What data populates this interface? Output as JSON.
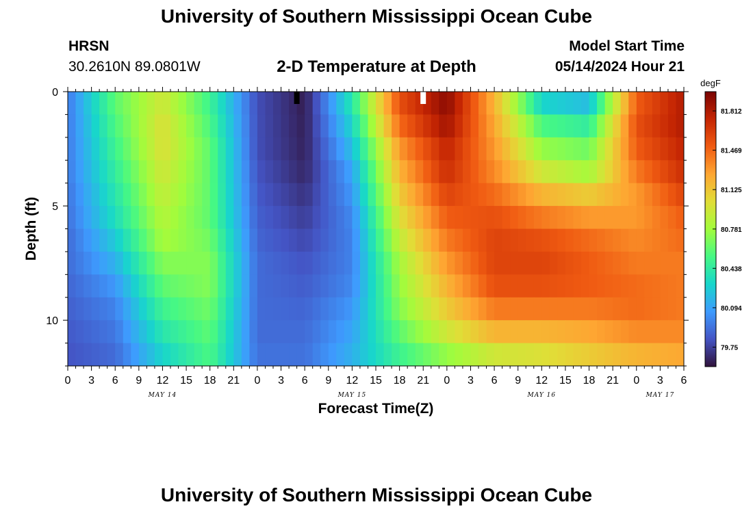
{
  "header": {
    "title": "University of Southern Mississippi Ocean Cube",
    "station": "HRSN",
    "coords": "30.2610N  89.0801W",
    "subtitle": "2-D Temperature at Depth",
    "start_label": "Model Start Time",
    "start_value": "05/14/2024 Hour 21"
  },
  "footer": {
    "title": "University of Southern Mississippi Ocean Cube"
  },
  "chart_data": {
    "type": "heatmap",
    "title": "2-D Temperature at Depth",
    "xlabel": "Forecast Time(Z)",
    "ylabel": "Depth (ft)",
    "x_unit": "hours since 05/14/2024 00Z",
    "xlim": [
      0,
      78
    ],
    "ylim": [
      0,
      12
    ],
    "y_inverted": true,
    "x_ticks": [
      0,
      3,
      6,
      9,
      12,
      15,
      18,
      21,
      24,
      27,
      30,
      33,
      36,
      39,
      42,
      45,
      48,
      51,
      54,
      57,
      60,
      63,
      66,
      69,
      72,
      75,
      78
    ],
    "x_tick_labels": [
      "0",
      "3",
      "6",
      "9",
      "12",
      "15",
      "18",
      "21",
      "0",
      "3",
      "6",
      "9",
      "12",
      "15",
      "18",
      "21",
      "0",
      "3",
      "6",
      "9",
      "12",
      "15",
      "18",
      "21",
      "0",
      "3",
      "6"
    ],
    "y_ticks": [
      0,
      5,
      10
    ],
    "y_tick_labels": [
      "0",
      "5",
      "10"
    ],
    "day_labels": [
      {
        "text": "MAY 14",
        "hour": 12
      },
      {
        "text": "MAY 15",
        "hour": 36
      },
      {
        "text": "MAY 16",
        "hour": 60
      },
      {
        "text": "MAY 17",
        "hour": 75
      }
    ],
    "colorbar": {
      "unit": "degF",
      "range": [
        79.58,
        81.98
      ],
      "tick_values": [
        81.812,
        81.469,
        81.125,
        80.781,
        80.438,
        80.094,
        79.75
      ],
      "tick_labels": [
        "81.812",
        "81.469",
        "81.125",
        "80.781",
        "80.438",
        "80.094",
        "79.75"
      ],
      "palette": [
        "#30123b",
        "#4454c4",
        "#3e9bfe",
        "#18d6cb",
        "#46f884",
        "#a2fc3c",
        "#e1dd37",
        "#fea632",
        "#f05b12",
        "#c42503",
        "#7a0403"
      ]
    },
    "time_markers": [
      {
        "hour": 29,
        "color": "#000000"
      },
      {
        "hour": 45,
        "color": "#ffffff"
      }
    ],
    "depth_rows": [
      0.5,
      1.5,
      2.5,
      3.5,
      4.5,
      5.5,
      6.5,
      7.5,
      8.5,
      9.5,
      10.5,
      11.5
    ],
    "hours": [
      0,
      6,
      12,
      18,
      24,
      30,
      36,
      42,
      48,
      54,
      60,
      66,
      72,
      78
    ],
    "temperature": [
      [
        79.95,
        80.6,
        80.95,
        80.5,
        79.8,
        79.62,
        80.4,
        81.55,
        81.92,
        81.2,
        80.3,
        80.2,
        81.5,
        81.8
      ],
      [
        79.95,
        80.55,
        81.0,
        80.55,
        79.8,
        79.63,
        80.3,
        81.45,
        81.85,
        81.25,
        80.55,
        80.45,
        81.55,
        81.8
      ],
      [
        79.95,
        80.5,
        81.0,
        80.6,
        79.8,
        79.64,
        80.2,
        81.3,
        81.75,
        81.3,
        80.75,
        80.65,
        81.5,
        81.75
      ],
      [
        79.95,
        80.45,
        80.95,
        80.6,
        79.82,
        79.66,
        80.1,
        81.2,
        81.7,
        81.35,
        80.95,
        80.8,
        81.4,
        81.7
      ],
      [
        79.93,
        80.4,
        80.9,
        80.6,
        79.84,
        79.7,
        80.05,
        81.1,
        81.6,
        81.45,
        81.2,
        81.1,
        81.3,
        81.6
      ],
      [
        79.92,
        80.35,
        80.85,
        80.6,
        79.86,
        79.74,
        80.0,
        81.0,
        81.5,
        81.55,
        81.4,
        81.3,
        81.3,
        81.5
      ],
      [
        79.9,
        80.25,
        80.8,
        80.65,
        79.88,
        79.78,
        79.98,
        80.9,
        81.4,
        81.6,
        81.55,
        81.45,
        81.35,
        81.45
      ],
      [
        79.9,
        80.15,
        80.7,
        80.7,
        79.9,
        79.82,
        79.98,
        80.8,
        81.3,
        81.6,
        81.6,
        81.5,
        81.4,
        81.4
      ],
      [
        79.88,
        80.05,
        80.6,
        80.7,
        79.9,
        79.85,
        80.0,
        80.75,
        81.2,
        81.55,
        81.55,
        81.5,
        81.45,
        81.4
      ],
      [
        79.86,
        79.98,
        80.5,
        80.65,
        79.9,
        79.88,
        80.05,
        80.7,
        81.1,
        81.4,
        81.4,
        81.4,
        81.45,
        81.4
      ],
      [
        79.84,
        79.94,
        80.4,
        80.6,
        79.9,
        79.9,
        80.1,
        80.6,
        80.95,
        81.2,
        81.2,
        81.25,
        81.35,
        81.35
      ],
      [
        79.82,
        79.9,
        80.3,
        80.55,
        79.92,
        79.92,
        80.15,
        80.5,
        80.75,
        80.95,
        81.0,
        81.1,
        81.2,
        81.25
      ]
    ]
  }
}
